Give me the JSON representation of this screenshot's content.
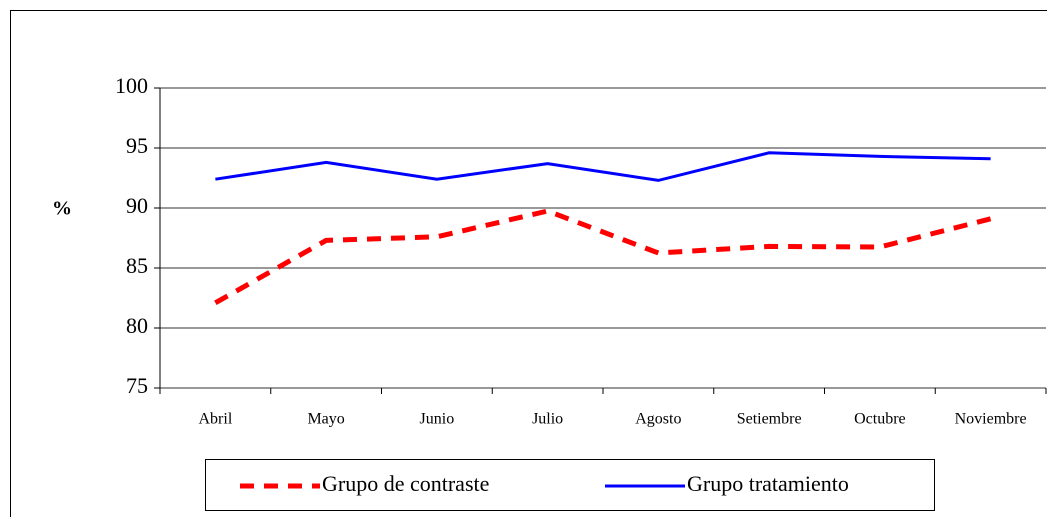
{
  "chart_data": {
    "type": "line",
    "y_label": "%",
    "categories": [
      "Abril",
      "Mayo",
      "Junio",
      "Julio",
      "Agosto",
      "Setiembre",
      "Octubre",
      "Noviembre"
    ],
    "series": [
      {
        "name": "Grupo de contraste",
        "color": "#ff0000",
        "dashed": true,
        "values": [
          82.1,
          87.3,
          87.6,
          89.75,
          86.25,
          86.8,
          86.75,
          89.1
        ]
      },
      {
        "name": "Grupo tratamiento",
        "color": "#0000ff",
        "dashed": false,
        "values": [
          92.4,
          93.8,
          92.4,
          93.7,
          92.3,
          94.6,
          94.3,
          94.1
        ]
      }
    ],
    "ylim": [
      75,
      100
    ],
    "yticks": [
      75,
      80,
      85,
      90,
      95,
      100
    ],
    "grid": true
  }
}
